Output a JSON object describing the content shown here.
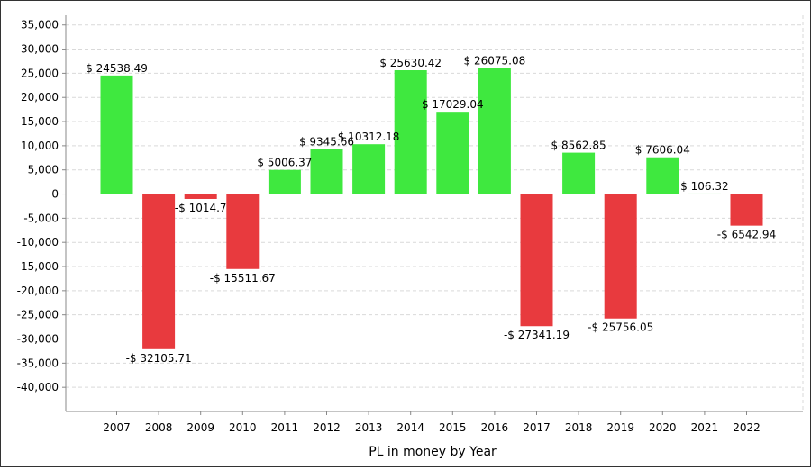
{
  "chart_data": {
    "type": "bar",
    "title": "",
    "xlabel": "PL in money by Year",
    "ylabel": "",
    "ylim": [
      -45000,
      37000
    ],
    "yticks": [
      35000,
      30000,
      25000,
      20000,
      15000,
      10000,
      5000,
      0,
      -5000,
      -10000,
      -15000,
      -20000,
      -25000,
      -30000,
      -35000,
      -40000
    ],
    "ytick_labels": [
      "35,000",
      "30,000",
      "25,000",
      "20,000",
      "15,000",
      "10,000",
      "5,000",
      "0",
      "-5,000",
      "-10,000",
      "-15,000",
      "-20,000",
      "-25,000",
      "-30,000",
      "-35,000",
      "-40,000"
    ],
    "categories": [
      "2007",
      "2008",
      "2009",
      "2010",
      "2011",
      "2012",
      "2013",
      "2014",
      "2015",
      "2016",
      "2017",
      "2018",
      "2019",
      "2020",
      "2021",
      "2022"
    ],
    "values": [
      24538.49,
      -32105.71,
      -1014.7,
      -15511.67,
      5006.37,
      9345.66,
      10312.18,
      25630.42,
      17029.04,
      26075.08,
      -27341.19,
      8562.85,
      -25756.05,
      7606.04,
      106.32,
      -6542.94
    ],
    "data_labels": [
      "$ 24538.49",
      "-$ 32105.71",
      "-$ 1014.7",
      "-$ 15511.67",
      "$ 5006.37",
      "$ 9345.66",
      "$ 10312.18",
      "$ 25630.42",
      "$ 17029.04",
      "$ 26075.08",
      "-$ 27341.19",
      "$ 8562.85",
      "-$ 25756.05",
      "$ 7606.04",
      "$ 106.32",
      "-$ 6542.94"
    ],
    "grid": true,
    "colors": {
      "positive": "#3fe83f",
      "negative": "#e83a3e",
      "grid": "#d9d9d9",
      "axis": "#888888"
    }
  }
}
